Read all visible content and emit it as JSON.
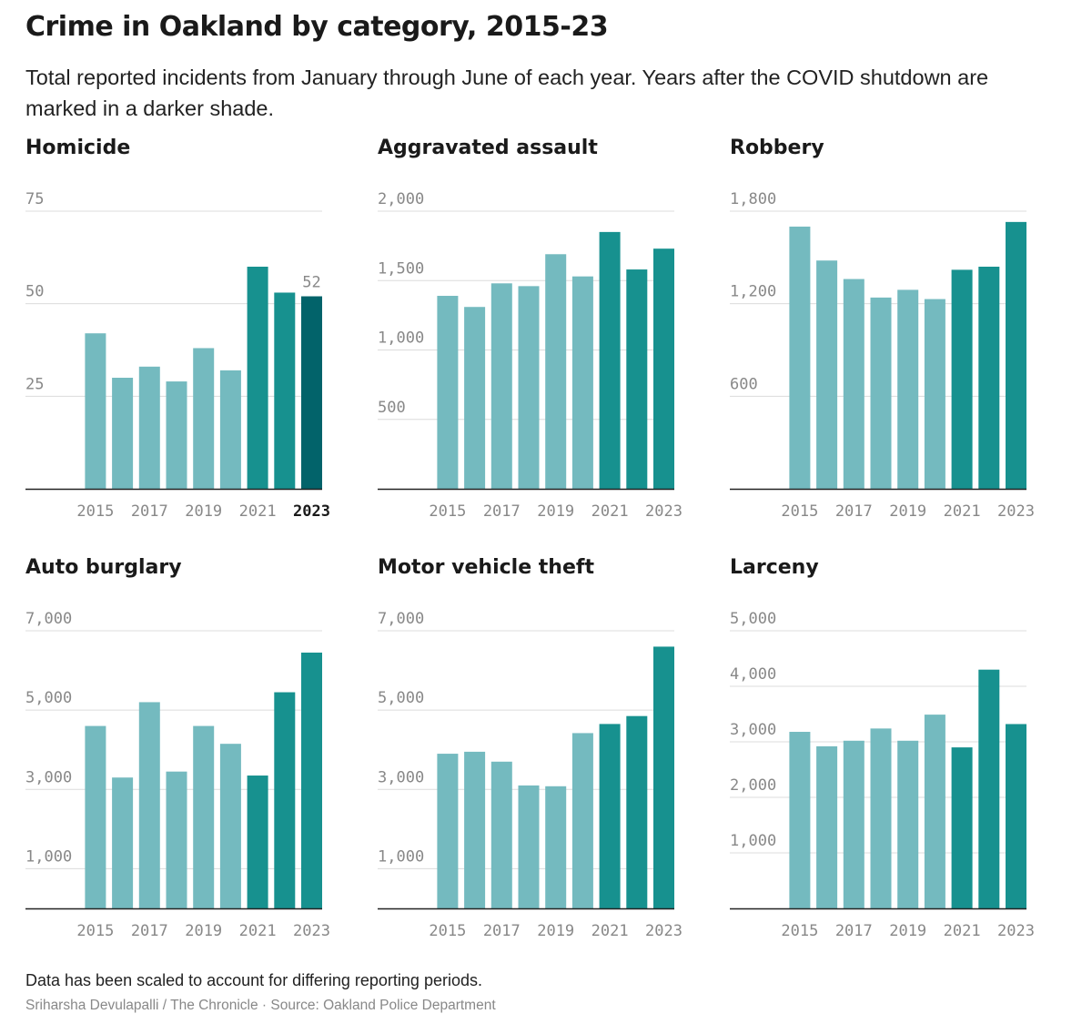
{
  "header": {
    "title": "Crime in Oakland by category, 2015-23",
    "subtitle": "Total reported incidents from January through June of each year. Years after the COVID shutdown are marked in a darker shade."
  },
  "colors": {
    "pre_covid": "#74babf",
    "post_covid": "#17918f",
    "highlight": "#02636a",
    "grid": "#dcdcdc",
    "baseline": "#222222"
  },
  "footer": {
    "note": "Data has been scaled to account for differing reporting periods.",
    "credit": "Sriharsha Devulapalli / The Chronicle · Source: Oakland Police Department"
  },
  "chart_data": [
    {
      "type": "bar",
      "title": "Homicide",
      "categories": [
        "2015",
        "2016",
        "2017",
        "2018",
        "2019",
        "2020",
        "2021",
        "2022",
        "2023"
      ],
      "values": [
        42,
        30,
        33,
        29,
        38,
        32,
        60,
        53,
        52
      ],
      "yticks": [
        25,
        50,
        75
      ],
      "ytick_labels": [
        "25",
        "50",
        "75"
      ],
      "xticks": [
        "2015",
        "2017",
        "2019",
        "2021",
        "2023"
      ],
      "ylim": [
        0,
        75
      ],
      "highlight_index": 8,
      "data_label": "52",
      "bold_last_xtick": true
    },
    {
      "type": "bar",
      "title": "Aggravated assault",
      "categories": [
        "2015",
        "2016",
        "2017",
        "2018",
        "2019",
        "2020",
        "2021",
        "2022",
        "2023"
      ],
      "values": [
        1390,
        1310,
        1480,
        1460,
        1690,
        1530,
        1850,
        1580,
        1730
      ],
      "yticks": [
        500,
        1000,
        1500,
        2000
      ],
      "ytick_labels": [
        "500",
        "1,000",
        "1,500",
        "2,000"
      ],
      "xticks": [
        "2015",
        "2017",
        "2019",
        "2021",
        "2023"
      ],
      "ylim": [
        0,
        2000
      ]
    },
    {
      "type": "bar",
      "title": "Robbery",
      "categories": [
        "2015",
        "2016",
        "2017",
        "2018",
        "2019",
        "2020",
        "2021",
        "2022",
        "2023"
      ],
      "values": [
        1700,
        1480,
        1360,
        1240,
        1290,
        1230,
        1420,
        1440,
        1730
      ],
      "yticks": [
        600,
        1200,
        1800
      ],
      "ytick_labels": [
        "600",
        "1,200",
        "1,800"
      ],
      "xticks": [
        "2015",
        "2017",
        "2019",
        "2021",
        "2023"
      ],
      "ylim": [
        0,
        1800
      ]
    },
    {
      "type": "bar",
      "title": "Auto burglary",
      "categories": [
        "2015",
        "2016",
        "2017",
        "2018",
        "2019",
        "2020",
        "2021",
        "2022",
        "2023"
      ],
      "values": [
        4600,
        3300,
        5200,
        3450,
        4600,
        4150,
        3350,
        5450,
        6450
      ],
      "yticks": [
        1000,
        3000,
        5000,
        7000
      ],
      "ytick_labels": [
        "1,000",
        "3,000",
        "5,000",
        "7,000"
      ],
      "xticks": [
        "2015",
        "2017",
        "2019",
        "2021",
        "2023"
      ],
      "ylim": [
        0,
        7000
      ]
    },
    {
      "type": "bar",
      "title": "Motor vehicle theft",
      "categories": [
        "2015",
        "2016",
        "2017",
        "2018",
        "2019",
        "2020",
        "2021",
        "2022",
        "2023"
      ],
      "values": [
        3900,
        3950,
        3700,
        3100,
        3080,
        4420,
        4650,
        4850,
        6600
      ],
      "yticks": [
        1000,
        3000,
        5000,
        7000
      ],
      "ytick_labels": [
        "1,000",
        "3,000",
        "5,000",
        "7,000"
      ],
      "xticks": [
        "2015",
        "2017",
        "2019",
        "2021",
        "2023"
      ],
      "ylim": [
        0,
        7000
      ]
    },
    {
      "type": "bar",
      "title": "Larceny",
      "categories": [
        "2015",
        "2016",
        "2017",
        "2018",
        "2019",
        "2020",
        "2021",
        "2022",
        "2023"
      ],
      "values": [
        3180,
        2920,
        3020,
        3240,
        3020,
        3490,
        2900,
        4300,
        3320
      ],
      "yticks": [
        1000,
        2000,
        3000,
        4000,
        5000
      ],
      "ytick_labels": [
        "1,000",
        "2,000",
        "3,000",
        "4,000",
        "5,000"
      ],
      "xticks": [
        "2015",
        "2017",
        "2019",
        "2021",
        "2023"
      ],
      "ylim": [
        0,
        5000
      ]
    }
  ]
}
